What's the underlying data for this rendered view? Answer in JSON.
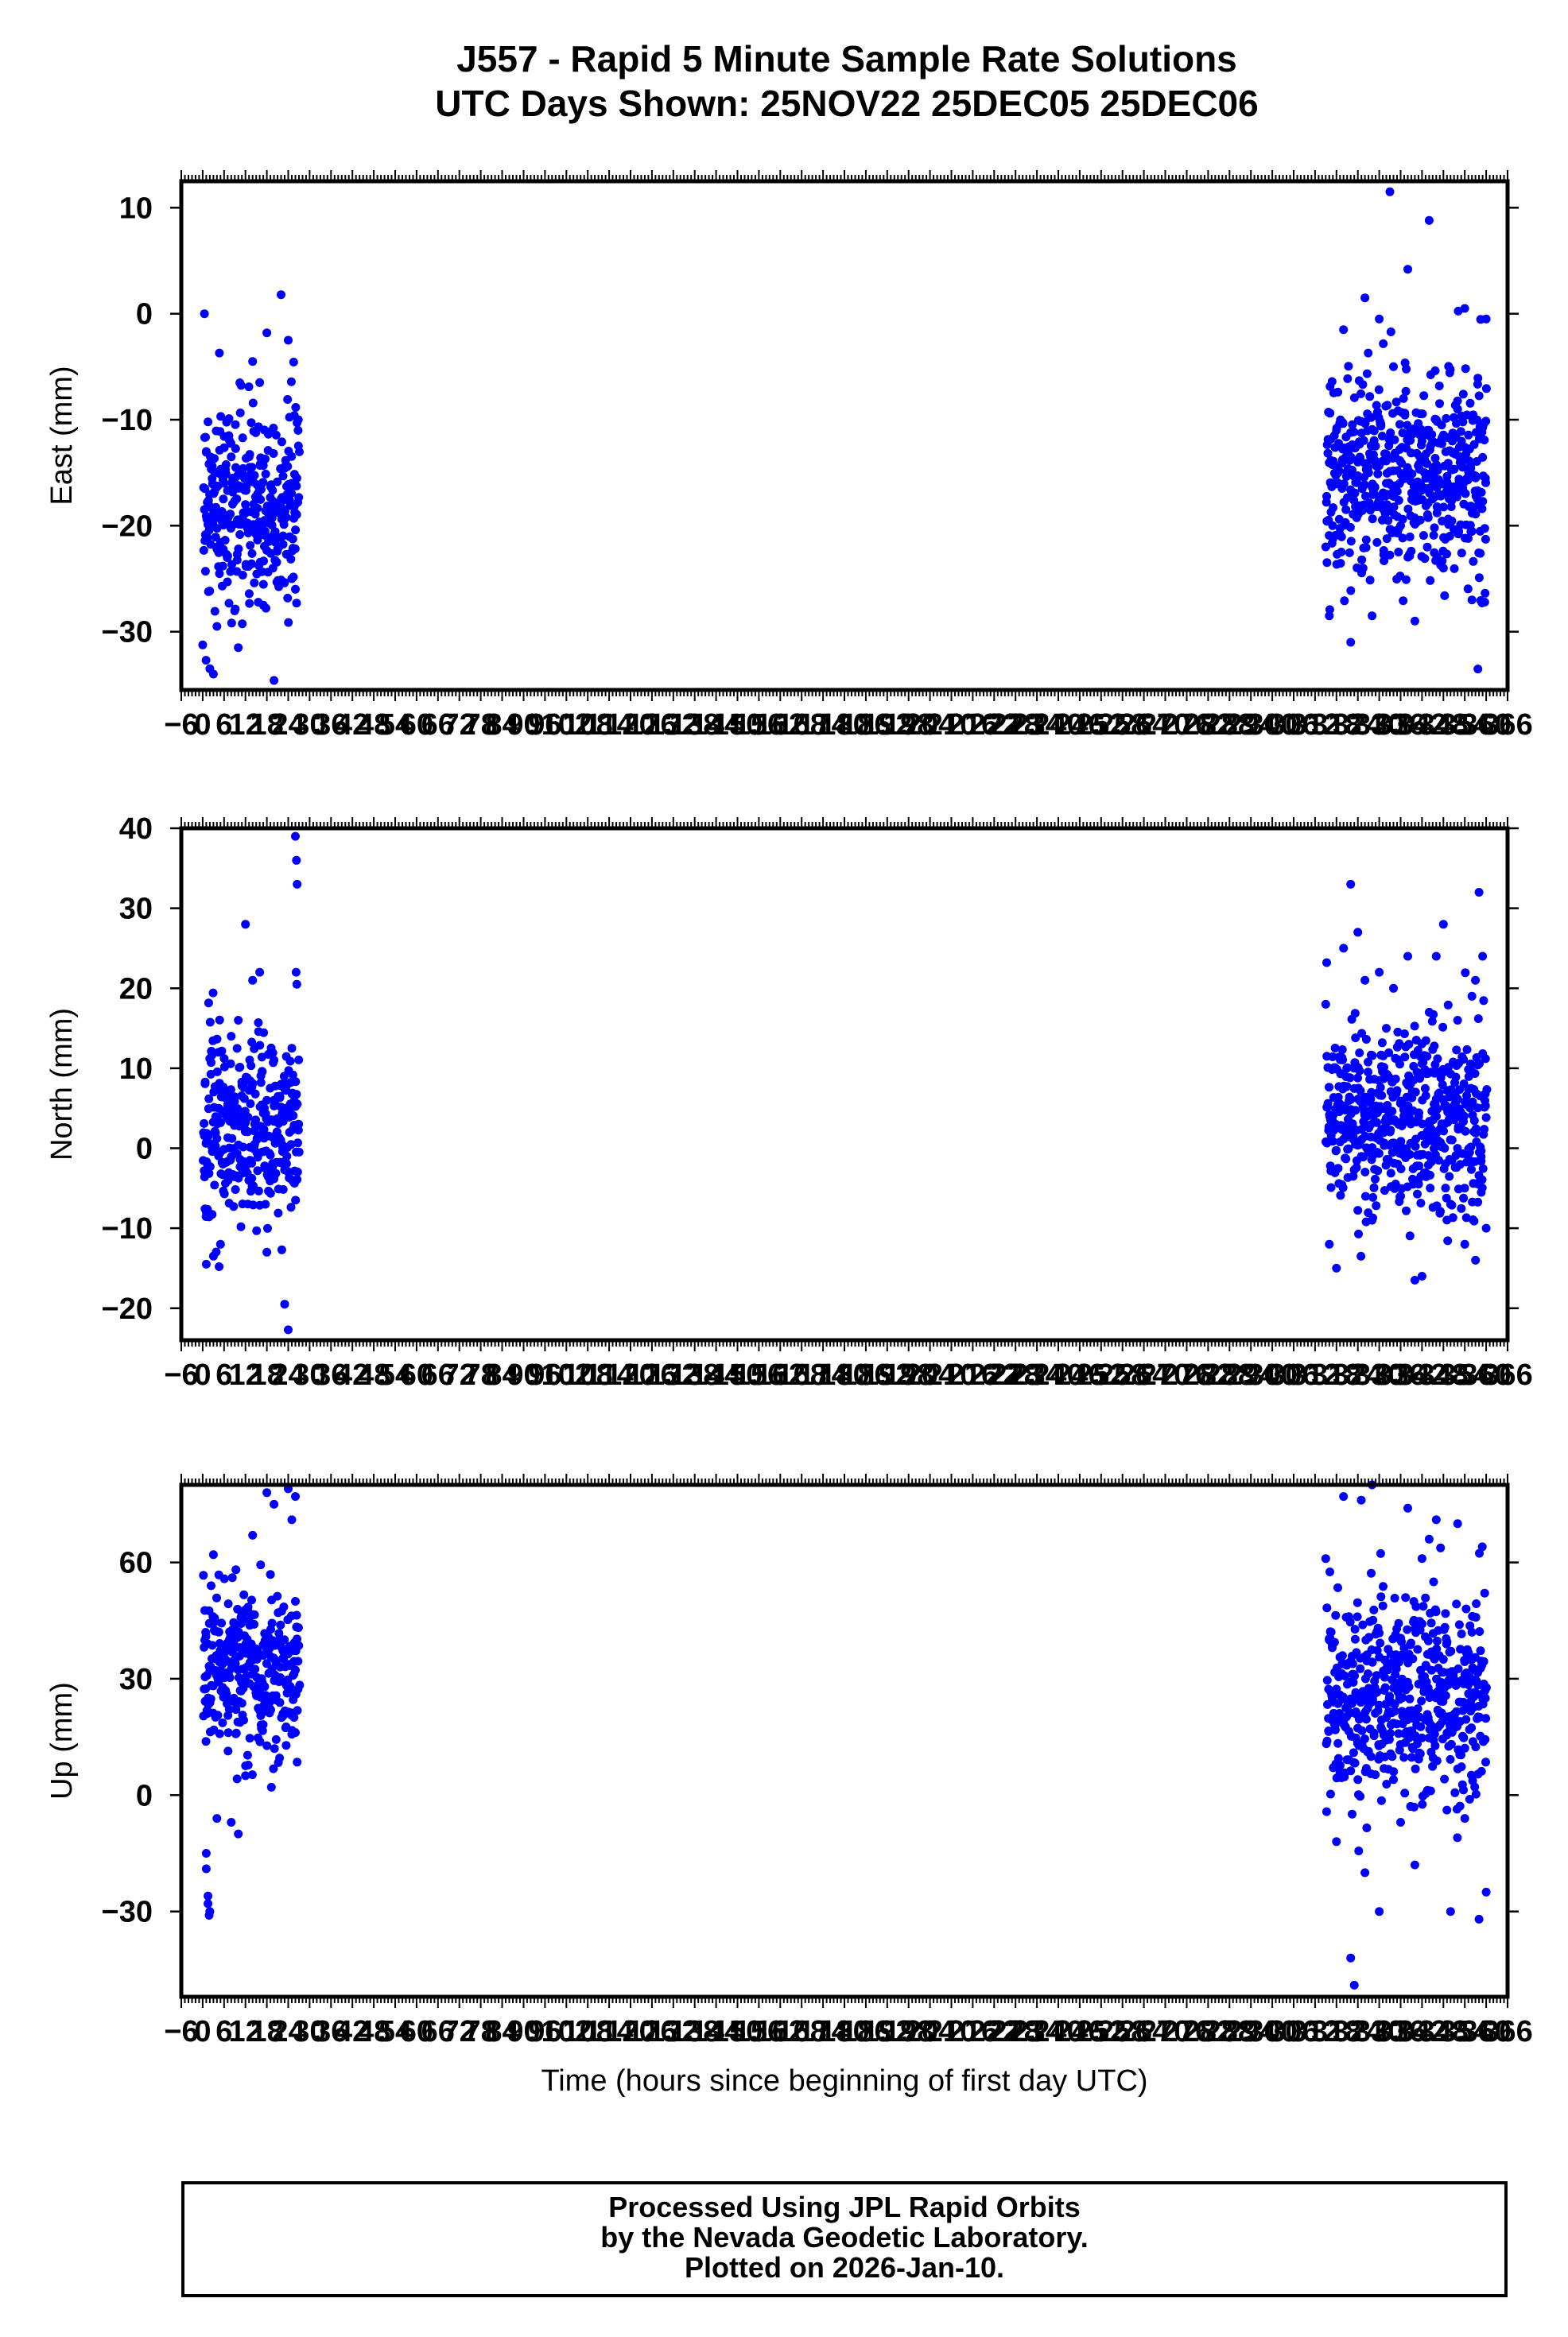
{
  "header": {
    "title_line1": "J557 - Rapid 5 Minute Sample Rate Solutions",
    "title_line2": "UTC Days Shown:  25NOV22 25DEC05 25DEC06"
  },
  "footer": {
    "line1": "Processed Using JPL Rapid Orbits",
    "line2": "by the Nevada Geodetic Laboratory.",
    "line3": "Plotted on 2026-Jan-10."
  },
  "colors": {
    "points": "#0000ff",
    "axes": "#000000"
  },
  "chart_data": [
    {
      "type": "scatter",
      "title": "",
      "xlabel": "",
      "ylabel": "East (mm)",
      "xlim": [
        -6,
        366
      ],
      "ylim": [
        -35.5,
        12.5
      ],
      "yticks": [
        -30,
        -20,
        -10,
        0,
        10
      ],
      "xtick_labels": [
        "-6",
        "0",
        "6",
        "12",
        "18",
        "24",
        "30",
        "36",
        "42",
        "48",
        "54",
        "60",
        "66",
        "72",
        "78",
        "84",
        "90",
        "96",
        "102",
        "108",
        "114",
        "120",
        "126",
        "132",
        "138",
        "144",
        "150",
        "156",
        "162",
        "168",
        "174",
        "180",
        "186",
        "192",
        "198",
        "204",
        "210",
        "216",
        "222",
        "228",
        "234",
        "240",
        "246",
        "252",
        "258",
        "264",
        "270",
        "276",
        "282",
        "288",
        "294",
        "300",
        "306",
        "312",
        "318",
        "324",
        "330",
        "336",
        "342",
        "348",
        "354",
        "360",
        "366"
      ],
      "grid": false,
      "series": [
        {
          "clusters": [
            {
              "x_range": [
                0,
                27
              ],
              "center": -18,
              "spread": 6
            },
            {
              "x_range": [
                315,
                360
              ],
              "center": -15,
              "spread": 6
            }
          ],
          "points": [
            [
              0.5,
              0
            ],
            [
              1.5,
              -10.2
            ],
            [
              1,
              -13
            ],
            [
              2,
              -33.5
            ],
            [
              3,
              -34
            ],
            [
              4,
              -29.5
            ],
            [
              6,
              -16
            ],
            [
              8,
              -13.5
            ],
            [
              10,
              -31.5
            ],
            [
              12,
              -18
            ],
            [
              13,
              -13.5
            ],
            [
              14,
              -4.5
            ],
            [
              16,
              -6.5
            ],
            [
              17,
              -27.5
            ],
            [
              18,
              -1.8
            ],
            [
              20,
              -34.6
            ],
            [
              22,
              1.8
            ],
            [
              24,
              -2.5
            ],
            [
              25,
              -25
            ],
            [
              26,
              -26
            ],
            [
              315,
              -22
            ],
            [
              316,
              -28.5
            ],
            [
              318,
              -11
            ],
            [
              320,
              -1.5
            ],
            [
              322,
              -31
            ],
            [
              324,
              -14
            ],
            [
              326,
              1.5
            ],
            [
              328,
              -28.5
            ],
            [
              330,
              -0.5
            ],
            [
              332,
              -16
            ],
            [
              333,
              11.5
            ],
            [
              334,
              -5
            ],
            [
              336,
              -20
            ],
            [
              338,
              4.2
            ],
            [
              340,
              -29
            ],
            [
              342,
              -12
            ],
            [
              344,
              8.8
            ],
            [
              346,
              -10
            ],
            [
              348,
              -24
            ],
            [
              350,
              -17
            ],
            [
              352,
              -9
            ],
            [
              354,
              0.5
            ],
            [
              356,
              -27
            ],
            [
              358,
              -18
            ],
            [
              360,
              -0.5
            ]
          ]
        }
      ]
    },
    {
      "type": "scatter",
      "title": "",
      "xlabel": "",
      "ylabel": "North (mm)",
      "xlim": [
        -6,
        366
      ],
      "ylim": [
        -24,
        40
      ],
      "yticks": [
        -20,
        -10,
        0,
        10,
        20,
        30,
        40
      ],
      "xtick_labels": [
        "-6",
        "0",
        "6",
        "12",
        "18",
        "24",
        "30",
        "36",
        "42",
        "48",
        "54",
        "60",
        "66",
        "72",
        "78",
        "84",
        "90",
        "96",
        "102",
        "108",
        "114",
        "120",
        "126",
        "132",
        "138",
        "144",
        "150",
        "156",
        "162",
        "168",
        "174",
        "180",
        "186",
        "192",
        "198",
        "204",
        "210",
        "216",
        "222",
        "228",
        "234",
        "240",
        "246",
        "252",
        "258",
        "264",
        "270",
        "276",
        "282",
        "288",
        "294",
        "300",
        "306",
        "312",
        "318",
        "324",
        "330",
        "336",
        "342",
        "348",
        "354",
        "360",
        "366"
      ],
      "grid": false,
      "series": [
        {
          "clusters": [
            {
              "x_range": [
                0,
                27
              ],
              "center": 2,
              "spread": 7
            },
            {
              "x_range": [
                315,
                360
              ],
              "center": 4,
              "spread": 7
            }
          ],
          "points": [
            [
              1,
              -14.5
            ],
            [
              3,
              -13.5
            ],
            [
              5,
              -12
            ],
            [
              8,
              14
            ],
            [
              10,
              16
            ],
            [
              12,
              28
            ],
            [
              14,
              21
            ],
            [
              16,
              22
            ],
            [
              18,
              -13
            ],
            [
              20,
              11
            ],
            [
              22,
              8
            ],
            [
              23,
              -19.5
            ],
            [
              24,
              -22.7
            ],
            [
              26,
              39
            ],
            [
              26.3,
              36
            ],
            [
              26.5,
              33
            ],
            [
              26.2,
              22
            ],
            [
              26.4,
              20.5
            ],
            [
              25,
              12.5
            ],
            [
              315,
              18
            ],
            [
              316,
              -12
            ],
            [
              318,
              -15
            ],
            [
              320,
              25
            ],
            [
              322,
              33
            ],
            [
              324,
              27
            ],
            [
              326,
              21
            ],
            [
              328,
              -9
            ],
            [
              330,
              22
            ],
            [
              332,
              15
            ],
            [
              334,
              20
            ],
            [
              336,
              -6
            ],
            [
              338,
              24
            ],
            [
              340,
              -16.5
            ],
            [
              342,
              -16
            ],
            [
              344,
              17
            ],
            [
              346,
              24
            ],
            [
              348,
              28
            ],
            [
              350,
              -7
            ],
            [
              352,
              16
            ],
            [
              354,
              -12
            ],
            [
              356,
              19
            ],
            [
              358,
              32
            ],
            [
              360,
              -10
            ],
            [
              359,
              24
            ],
            [
              357,
              21
            ]
          ]
        }
      ]
    },
    {
      "type": "scatter",
      "title": "",
      "xlabel": "Time (hours since beginning of first day UTC)",
      "ylabel": "Up (mm)",
      "xlim": [
        -6,
        366
      ],
      "ylim": [
        -52,
        80
      ],
      "yticks": [
        -30,
        0,
        30,
        60
      ],
      "xtick_labels": [
        "-6",
        "0",
        "6",
        "12",
        "18",
        "24",
        "30",
        "36",
        "42",
        "48",
        "54",
        "60",
        "66",
        "72",
        "78",
        "84",
        "90",
        "96",
        "102",
        "108",
        "114",
        "120",
        "126",
        "132",
        "138",
        "144",
        "150",
        "156",
        "162",
        "168",
        "174",
        "180",
        "186",
        "192",
        "198",
        "204",
        "210",
        "216",
        "222",
        "228",
        "234",
        "240",
        "246",
        "252",
        "258",
        "264",
        "270",
        "276",
        "282",
        "288",
        "294",
        "300",
        "306",
        "312",
        "318",
        "324",
        "330",
        "336",
        "342",
        "348",
        "354",
        "360",
        "366"
      ],
      "grid": false,
      "series": [
        {
          "clusters": [
            {
              "x_range": [
                0,
                27
              ],
              "center": 32,
              "spread": 13
            },
            {
              "x_range": [
                315,
                360
              ],
              "center": 25,
              "spread": 17
            }
          ],
          "points": [
            [
              1,
              -15
            ],
            [
              1,
              -19
            ],
            [
              1.5,
              -26
            ],
            [
              1.5,
              -28
            ],
            [
              2,
              -30
            ],
            [
              1.8,
              -31
            ],
            [
              3,
              62
            ],
            [
              4,
              -6
            ],
            [
              8,
              -7
            ],
            [
              10,
              -10
            ],
            [
              12,
              5
            ],
            [
              14,
              67
            ],
            [
              18,
              78
            ],
            [
              20,
              75
            ],
            [
              24,
              79
            ],
            [
              26,
              77
            ],
            [
              26.5,
              8.5
            ],
            [
              25,
              71
            ],
            [
              315,
              61
            ],
            [
              316,
              40
            ],
            [
              318,
              -12
            ],
            [
              320,
              77
            ],
            [
              322,
              -42
            ],
            [
              323,
              -49
            ],
            [
              324,
              4
            ],
            [
              326,
              -20
            ],
            [
              328,
              80
            ],
            [
              330,
              -30
            ],
            [
              332,
              20
            ],
            [
              334,
              4
            ],
            [
              336,
              -7
            ],
            [
              338,
              74
            ],
            [
              340,
              -18
            ],
            [
              342,
              61
            ],
            [
              344,
              66
            ],
            [
              346,
              71
            ],
            [
              348,
              35
            ],
            [
              350,
              -30
            ],
            [
              352,
              70
            ],
            [
              354,
              -6
            ],
            [
              356,
              42
            ],
            [
              358,
              -32
            ],
            [
              360,
              -25
            ]
          ]
        }
      ]
    }
  ]
}
